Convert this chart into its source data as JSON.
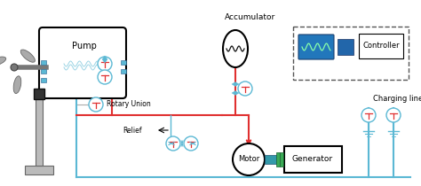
{
  "bg_color": "#ffffff",
  "blue": "#5bb8d4",
  "red": "#e03030",
  "dark": "#111111",
  "gray": "#888888",
  "teal_shaft": "#3399aa",
  "green_coupling": "#3aaa55",
  "controller_blue": "#2266aa",
  "screen_blue": "#2277bb",
  "screen_green": "#44bb88",
  "labels": {
    "pump": "Pump",
    "rotary_union": "Rotary Union",
    "relief": "Relief",
    "accumulator": "Accumulator",
    "motor": "Motor",
    "generator": "Generator",
    "controller": "Controller",
    "charging": "Charging line"
  },
  "figsize": [
    4.74,
    2.1
  ],
  "dpi": 100
}
